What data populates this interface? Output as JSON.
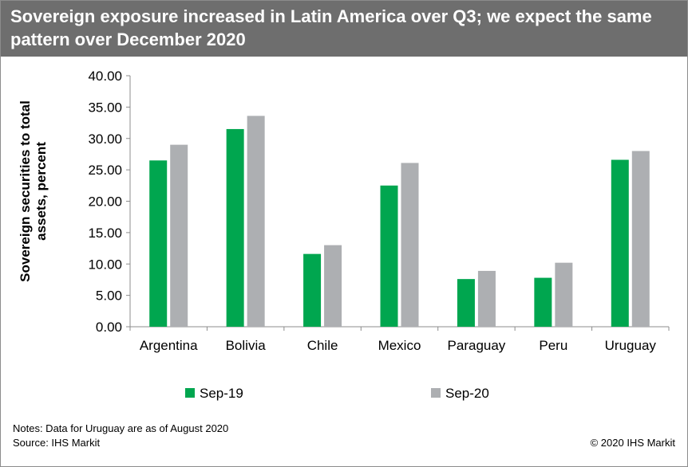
{
  "chart_data": {
    "type": "bar",
    "title": "Sovereign exposure increased in Latin America over Q3; we expect the same pattern over December 2020",
    "ylabel_line1": "Sovereign securities to total",
    "ylabel_line2": "assets, percent",
    "xlabel": "",
    "categories": [
      "Argentina",
      "Bolivia",
      "Chile",
      "Mexico",
      "Paraguay",
      "Peru",
      "Uruguay"
    ],
    "series": [
      {
        "name": "Sep-19",
        "color": "#00a64f",
        "values": [
          26.5,
          31.5,
          11.6,
          22.5,
          7.6,
          7.8,
          26.6
        ]
      },
      {
        "name": "Sep-20",
        "color": "#adafb2",
        "values": [
          29.0,
          33.6,
          13.0,
          26.1,
          8.9,
          10.2,
          28.0
        ]
      }
    ],
    "ylim": [
      0,
      40
    ],
    "yticks": [
      "0.00",
      "5.00",
      "10.00",
      "15.00",
      "20.00",
      "25.00",
      "30.00",
      "35.00",
      "40.00"
    ],
    "grid": false,
    "legend_position": "bottom"
  },
  "footer": {
    "notes": "Notes: Data for Uruguay are as of August 2020",
    "source": "Source: IHS Markit",
    "copyright": "© 2020 IHS Markit"
  }
}
